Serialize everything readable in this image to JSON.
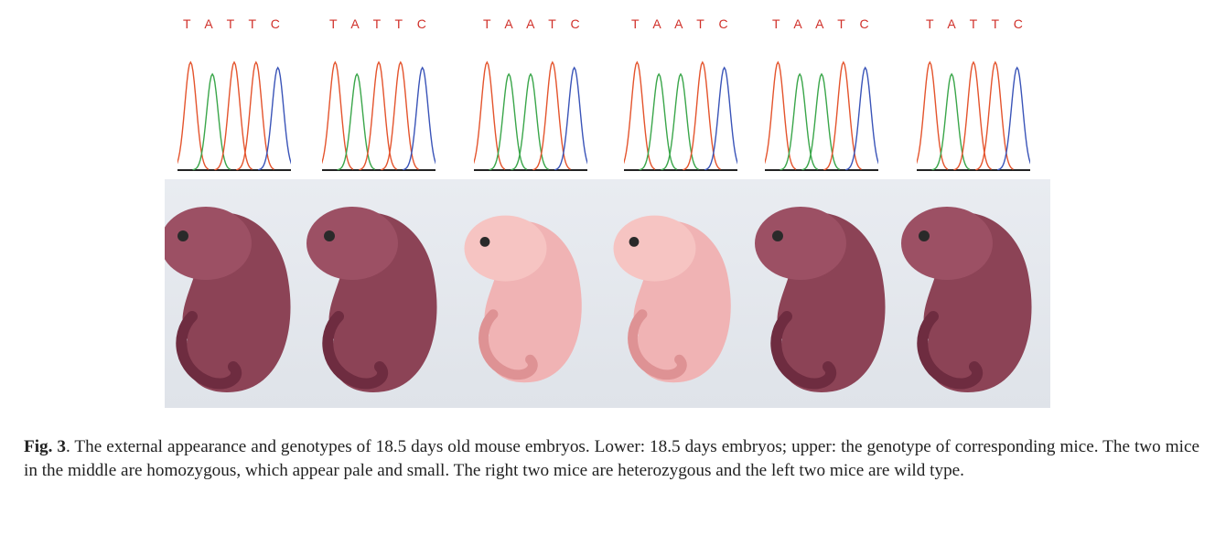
{
  "sequences": [
    "T A T T C",
    "T A T T C",
    "T A A T C",
    "T A A T C",
    "T A A T C",
    "T A T T C"
  ],
  "colors": {
    "T": "#e4542d",
    "A": "#3aa64a",
    "C": "#3a54b8",
    "G": "#222222"
  },
  "embryo_tones": [
    "dark",
    "dark",
    "pale",
    "pale",
    "dark",
    "dark"
  ],
  "caption": {
    "label": "Fig. 3",
    "text": ". The external appearance and genotypes of 18.5 days old mouse embryos. Lower: 18.5 days embryos; upper: the genotype of corresponding mice. The two mice in the middle are homozygous, which appear pale and small. The right two mice are heterozygous and the left two mice are wild type."
  }
}
